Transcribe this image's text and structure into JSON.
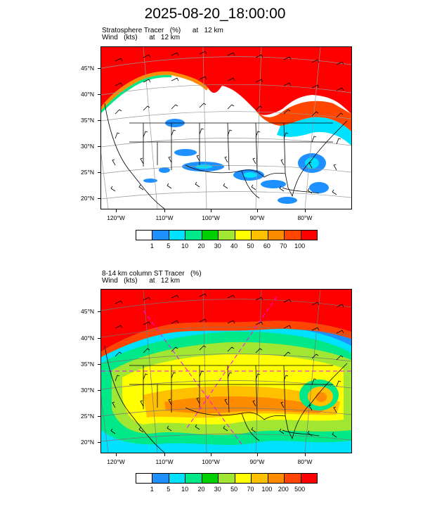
{
  "title": "2025-08-20_18:00:00",
  "panel1": {
    "subtitle_line1": "Stratosphere Tracer   (%)      at   12 km",
    "subtitle_line2": "Wind   (kts)      at   12 km",
    "legend_labels": [
      "1",
      "5",
      "10",
      "20",
      "30",
      "40",
      "50",
      "60",
      "70",
      "100"
    ],
    "legend_colors": [
      "#ffffff",
      "#1e90ff",
      "#00e0ff",
      "#00e887",
      "#00d000",
      "#a0e632",
      "#ffff00",
      "#ffc000",
      "#ff8c00",
      "#ff4500",
      "#ff0000"
    ]
  },
  "panel2": {
    "subtitle_line1": "8-14 km column ST Tracer   (%)",
    "subtitle_line2": "Wind   (kts)      at   12 km",
    "legend_labels": [
      "1",
      "5",
      "10",
      "20",
      "30",
      "50",
      "70",
      "100",
      "200",
      "500"
    ],
    "legend_colors": [
      "#ffffff",
      "#1e90ff",
      "#00e0ff",
      "#00e887",
      "#00d000",
      "#a0e632",
      "#ffff00",
      "#ffc000",
      "#ff8c00",
      "#ff4500",
      "#ff0000"
    ]
  },
  "lat_labels": [
    "45°N",
    "40°N",
    "35°N",
    "30°N",
    "25°N",
    "20°N"
  ],
  "lon_labels": [
    "120°W",
    "110°W",
    "100°W",
    "90°W",
    "80°W"
  ]
}
